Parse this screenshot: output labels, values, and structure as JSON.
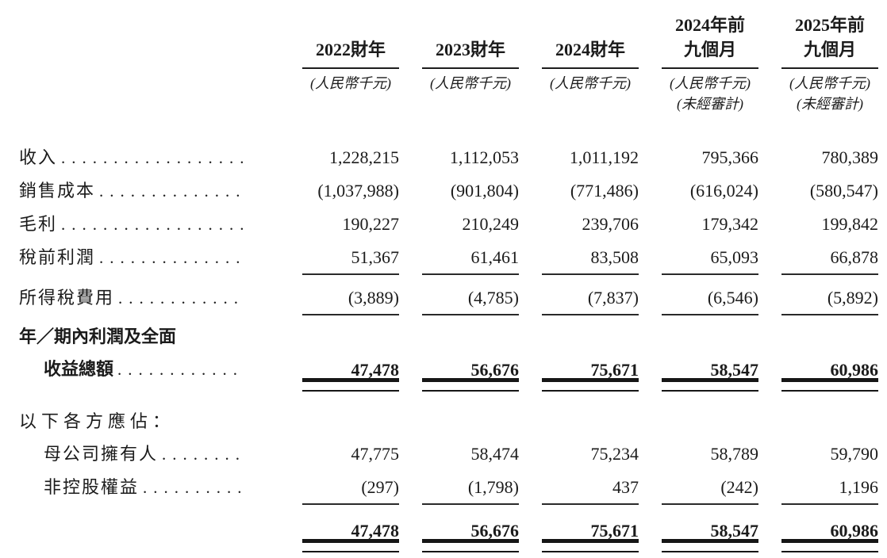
{
  "page": {
    "background": "#ffffff",
    "text_color": "#1b1b1b"
  },
  "table": {
    "header": {
      "columns": [
        {
          "title_lines": [
            "2022財年"
          ],
          "unit": "(人民幣千元)",
          "note": ""
        },
        {
          "title_lines": [
            "2023財年"
          ],
          "unit": "(人民幣千元)",
          "note": ""
        },
        {
          "title_lines": [
            "2024財年"
          ],
          "unit": "(人民幣千元)",
          "note": ""
        },
        {
          "title_lines": [
            "2024年前",
            "九個月"
          ],
          "unit": "(人民幣千元)",
          "note": "(未經審計)"
        },
        {
          "title_lines": [
            "2025年前",
            "九個月"
          ],
          "unit": "(人民幣千元)",
          "note": "(未經審計)"
        }
      ]
    },
    "rows": [
      {
        "label": "收入",
        "values": [
          "1,228,215",
          "1,112,053",
          "1,011,192",
          "795,366",
          "780,389"
        ]
      },
      {
        "label": "銷售成本",
        "values": [
          "(1,037,988)",
          "(901,804)",
          "(771,486)",
          "(616,024)",
          "(580,547)"
        ]
      },
      {
        "label": "毛利",
        "values": [
          "190,227",
          "210,249",
          "239,706",
          "179,342",
          "199,842"
        ]
      },
      {
        "label": "稅前利潤",
        "values": [
          "51,367",
          "61,461",
          "83,508",
          "65,093",
          "66,878"
        ]
      },
      {
        "label": "所得稅費用",
        "values": [
          "(3,889)",
          "(4,785)",
          "(7,837)",
          "(6,546)",
          "(5,892)"
        ]
      },
      {
        "label_line1": "年／期內利潤及全面",
        "label_line2": "收益總額",
        "values": [
          "47,478",
          "56,676",
          "75,671",
          "58,547",
          "60,986"
        ]
      },
      {
        "label": "以下各方應佔："
      },
      {
        "label": "母公司擁有人",
        "values": [
          "47,775",
          "58,474",
          "75,234",
          "58,789",
          "59,790"
        ]
      },
      {
        "label": "非控股權益",
        "values": [
          "(297)",
          "(1,798)",
          "437",
          "(242)",
          "1,196"
        ]
      },
      {
        "label": "",
        "values": [
          "47,478",
          "56,676",
          "75,671",
          "58,547",
          "60,986"
        ]
      }
    ]
  }
}
